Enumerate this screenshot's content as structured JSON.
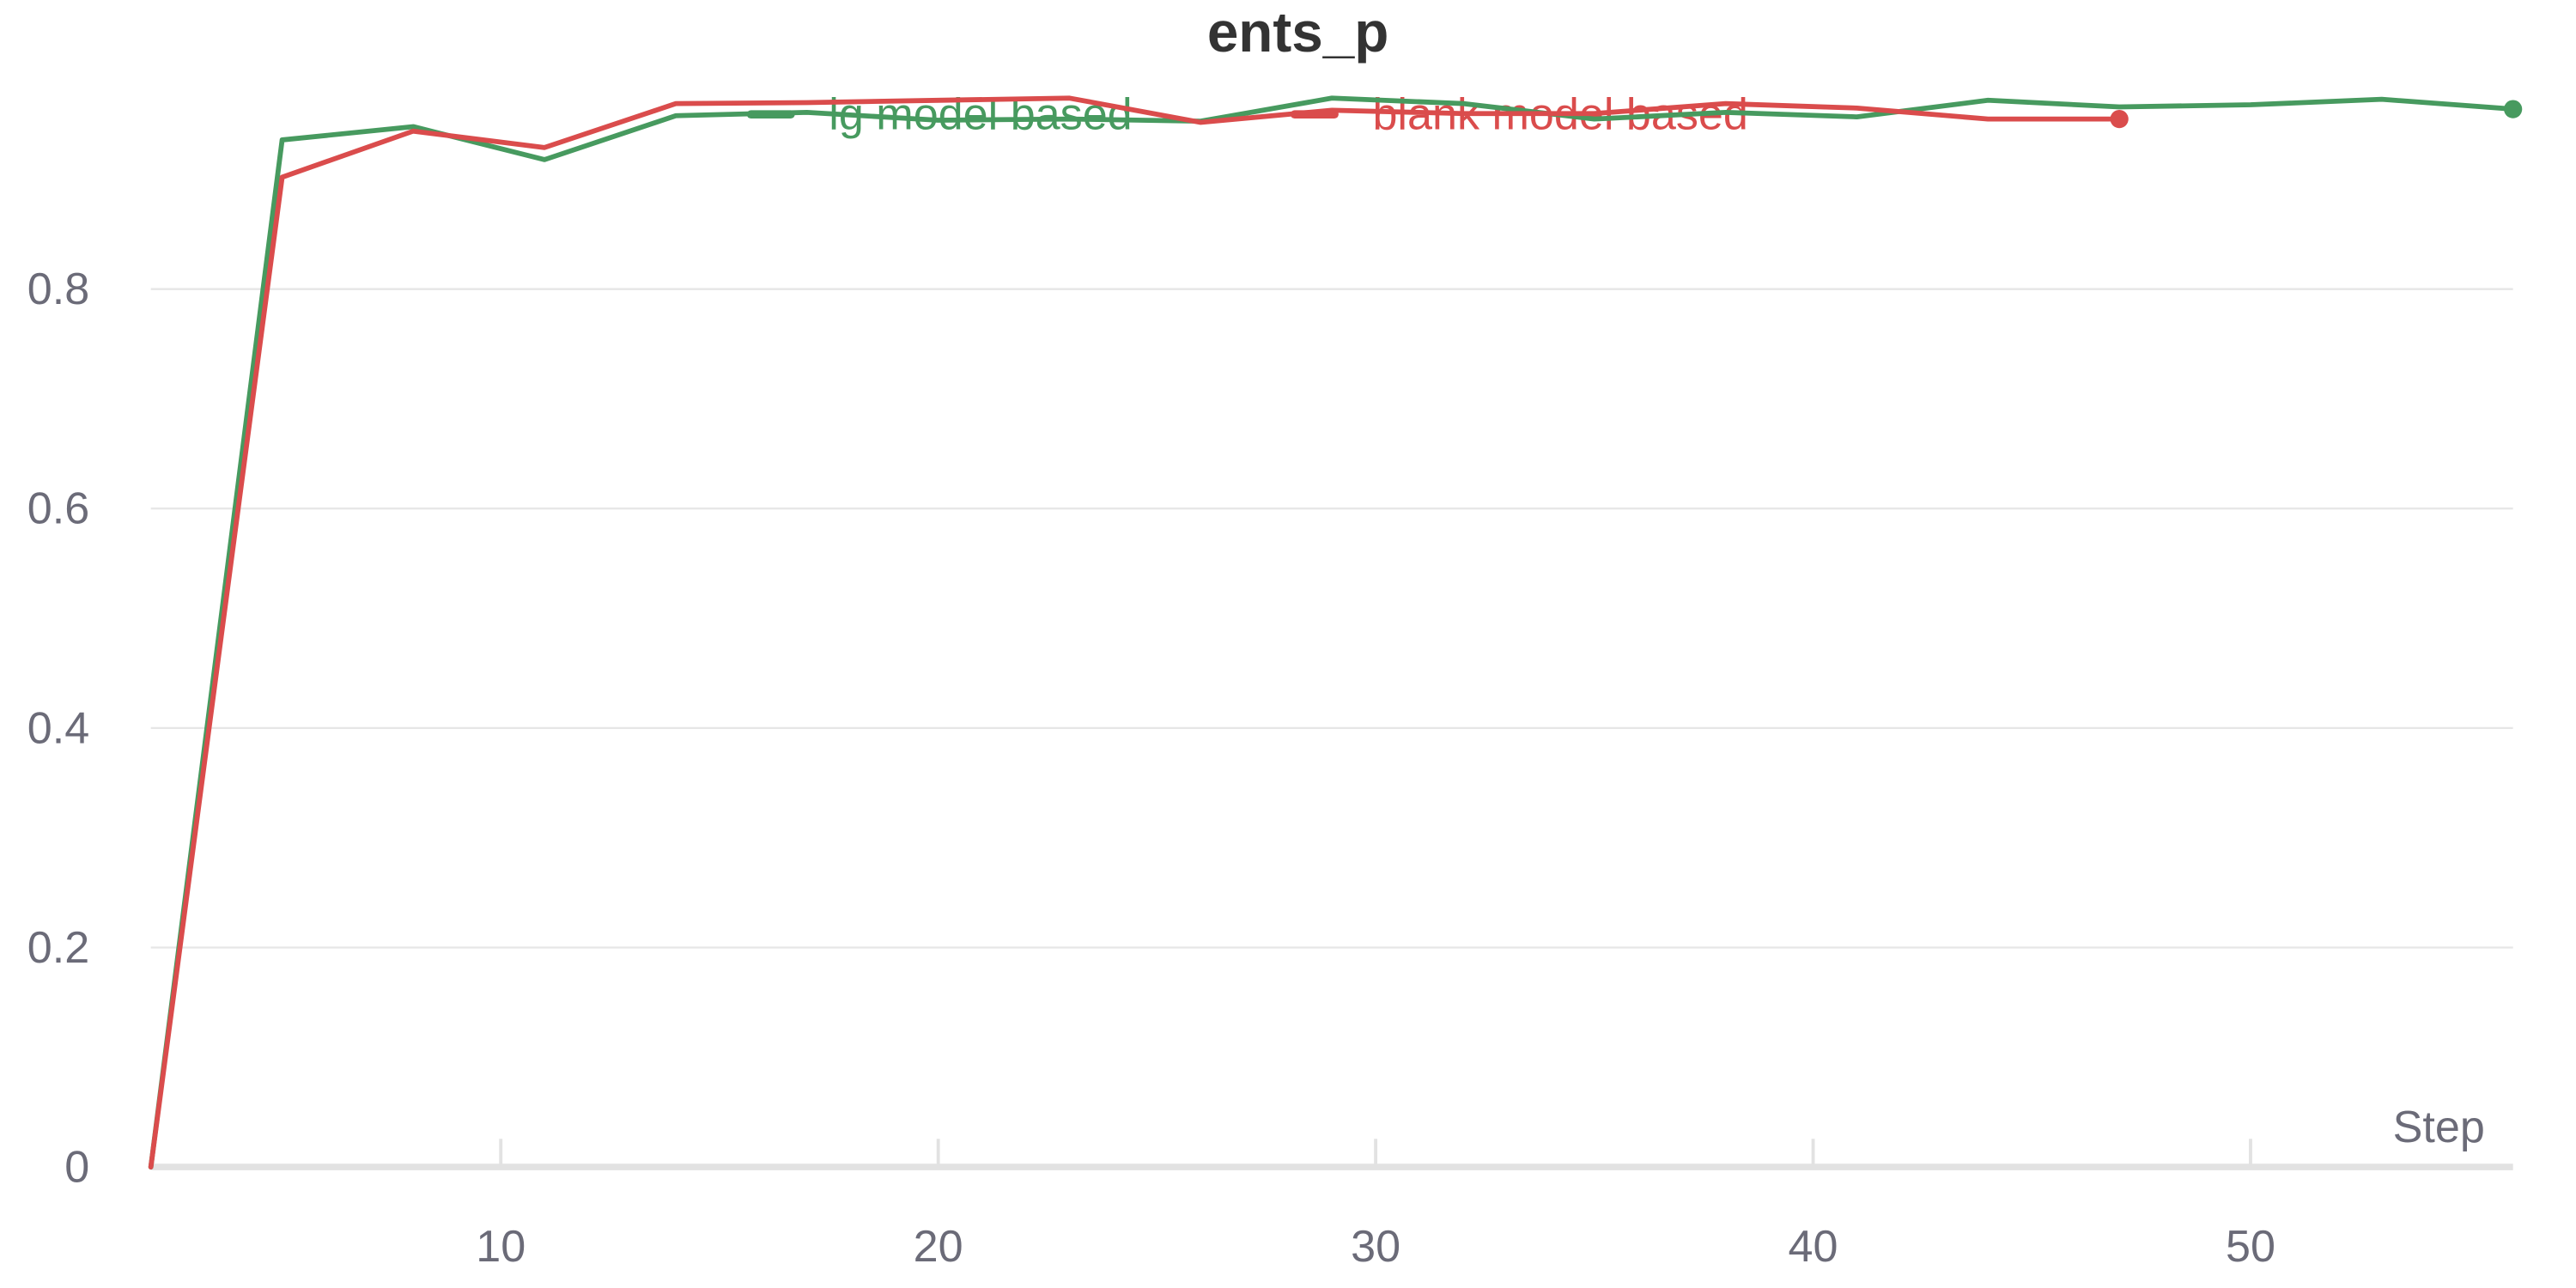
{
  "chart_data": {
    "type": "line",
    "title": "ents_p",
    "xlabel": "Step",
    "ylabel": "",
    "xlim": [
      2,
      56
    ],
    "ylim": [
      0,
      1.0
    ],
    "x_ticks": [
      10,
      20,
      30,
      40,
      50
    ],
    "y_ticks": [
      0,
      0.2,
      0.4,
      0.6,
      0.8
    ],
    "y_tick_labels": [
      "0",
      "0.2",
      "0.4",
      "0.6",
      "0.8"
    ],
    "grid": true,
    "legend_position": "top",
    "series": [
      {
        "name": "lg model based",
        "color": "#479a5f",
        "x": [
          2,
          5,
          8,
          11,
          14,
          17,
          20,
          23,
          26,
          29,
          32,
          35,
          38,
          41,
          44,
          47,
          50,
          53,
          56
        ],
        "y": [
          0,
          0.936,
          0.948,
          0.918,
          0.958,
          0.961,
          0.954,
          0.955,
          0.953,
          0.974,
          0.969,
          0.955,
          0.961,
          0.957,
          0.972,
          0.966,
          0.968,
          0.973,
          0.964
        ]
      },
      {
        "name": "blank model based",
        "color": "#da4c4c",
        "x": [
          2,
          5,
          8,
          11,
          14,
          17,
          20,
          23,
          26,
          29,
          32,
          35,
          38,
          41,
          44,
          47
        ],
        "y": [
          0,
          0.902,
          0.944,
          0.929,
          0.969,
          0.97,
          0.972,
          0.974,
          0.952,
          0.963,
          0.96,
          0.96,
          0.969,
          0.965,
          0.955,
          0.955
        ]
      }
    ]
  }
}
